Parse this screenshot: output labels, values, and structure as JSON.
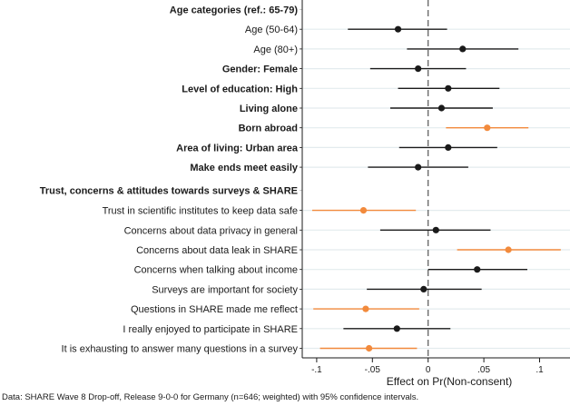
{
  "chart_data": {
    "type": "scatter",
    "subtype": "coefficient-plot-with-confidence-intervals",
    "title": "",
    "xlabel": "Effect on Pr(Non-consent)",
    "ylabel": "",
    "xlim": [
      -0.1,
      0.12
    ],
    "xticks": [
      {
        "value": -0.1,
        "label": "-.1"
      },
      {
        "value": -0.05,
        "label": "-.05"
      },
      {
        "value": 0,
        "label": "0"
      },
      {
        "value": 0.05,
        "label": ".05"
      },
      {
        "value": 0.1,
        "label": ".1"
      }
    ],
    "reference_line": {
      "value": 0,
      "style": "dashed"
    },
    "grid": "horizontal",
    "colors": {
      "not_significant": "#1a1a1a",
      "significant": "#f28a3c",
      "grid": "#e3ebee",
      "axis": "#1a1a1a"
    },
    "rows": [
      {
        "label": "Age categories (ref.: 65-79)",
        "header": true
      },
      {
        "label": "Age (50-64)",
        "estimate": -0.027,
        "ci_low": -0.072,
        "ci_high": 0.017,
        "significant": false
      },
      {
        "label": "Age (80+)",
        "estimate": 0.031,
        "ci_low": -0.019,
        "ci_high": 0.081,
        "significant": false
      },
      {
        "label": "Gender: Female",
        "estimate": -0.009,
        "ci_low": -0.052,
        "ci_high": 0.034,
        "significant": false,
        "bold": true
      },
      {
        "label": "Level of education: High",
        "estimate": 0.018,
        "ci_low": -0.027,
        "ci_high": 0.064,
        "significant": false,
        "bold": true
      },
      {
        "label": "Living alone",
        "estimate": 0.012,
        "ci_low": -0.034,
        "ci_high": 0.058,
        "significant": false,
        "bold": true
      },
      {
        "label": "Born abroad",
        "estimate": 0.053,
        "ci_low": 0.016,
        "ci_high": 0.09,
        "significant": true,
        "bold": true
      },
      {
        "label": "Area of living: Urban area",
        "estimate": 0.018,
        "ci_low": -0.026,
        "ci_high": 0.062,
        "significant": false,
        "bold": true
      },
      {
        "label": "Make ends meet easily",
        "estimate": -0.009,
        "ci_low": -0.054,
        "ci_high": 0.036,
        "significant": false,
        "bold": true
      },
      {
        "label": "Trust, concerns & attitudes towards surveys & SHARE",
        "header": true
      },
      {
        "label": "Trust in scientific institutes to keep data safe",
        "estimate": -0.058,
        "ci_low": -0.104,
        "ci_high": -0.011,
        "significant": true
      },
      {
        "label": "Concerns about data privacy in general",
        "estimate": 0.007,
        "ci_low": -0.043,
        "ci_high": 0.056,
        "significant": false
      },
      {
        "label": "Concerns about data leak in SHARE",
        "estimate": 0.072,
        "ci_low": 0.026,
        "ci_high": 0.119,
        "significant": true
      },
      {
        "label": "Concerns when talking about income",
        "estimate": 0.044,
        "ci_low": 0.0,
        "ci_high": 0.089,
        "significant": false
      },
      {
        "label": "Surveys are important for society",
        "estimate": -0.004,
        "ci_low": -0.055,
        "ci_high": 0.048,
        "significant": false
      },
      {
        "label": "Questions in SHARE made me reflect",
        "estimate": -0.056,
        "ci_low": -0.103,
        "ci_high": -0.008,
        "significant": true
      },
      {
        "label": "I really enjoyed to participate in SHARE",
        "estimate": -0.028,
        "ci_low": -0.076,
        "ci_high": 0.02,
        "significant": false
      },
      {
        "label": "It is exhausting to answer many questions in a survey",
        "estimate": -0.053,
        "ci_low": -0.097,
        "ci_high": -0.01,
        "significant": true
      }
    ],
    "note": "Data: SHARE Wave 8 Drop-off, Release 9-0-0 for Germany (n=646; weighted) with 95% confidence intervals."
  }
}
